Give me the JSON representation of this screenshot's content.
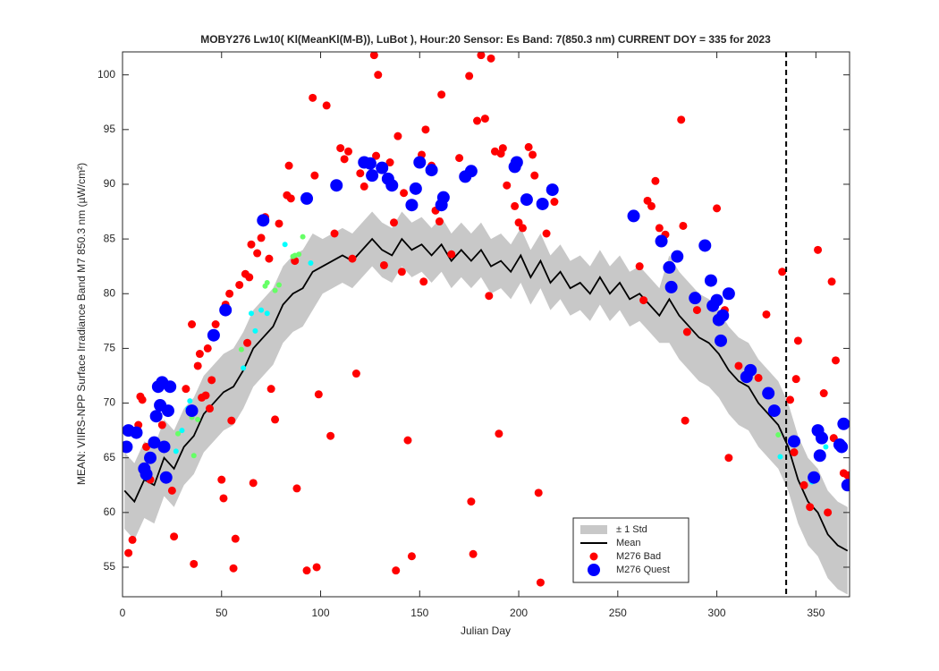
{
  "chart_data": {
    "type": "line",
    "title": "MOBY276   Lw10( Kl(MeanKl(M-B)), LuBot ),    Hour:20 Sensor: Es Band: 7(850.3 nm)    CURRENT DOY = 335 for 2023",
    "xlabel": "Julian Day",
    "ylabel": "MEAN: VIIRS-NPP Surface Irradiance Band M7 850.3 nm (µW/cm²)",
    "xlim": [
      0,
      367
    ],
    "ylim": [
      52.3,
      102.1
    ],
    "xticks": [
      0,
      50,
      100,
      150,
      200,
      250,
      300,
      350
    ],
    "yticks": [
      55,
      60,
      65,
      70,
      75,
      80,
      85,
      90,
      95,
      100
    ],
    "legend": "lower right",
    "vline": 335,
    "x": [
      1,
      6,
      11,
      16,
      21,
      26,
      31,
      36,
      41,
      46,
      51,
      56,
      61,
      66,
      71,
      76,
      81,
      86,
      91,
      96,
      101,
      106,
      111,
      116,
      121,
      126,
      131,
      136,
      141,
      146,
      151,
      156,
      161,
      166,
      171,
      176,
      181,
      186,
      191,
      196,
      201,
      206,
      211,
      216,
      221,
      226,
      231,
      236,
      241,
      246,
      251,
      256,
      261,
      266,
      271,
      276,
      281,
      286,
      291,
      296,
      301,
      306,
      311,
      316,
      321,
      326,
      331,
      336,
      341,
      346,
      351,
      356,
      361,
      366
    ],
    "band": {
      "name": "± 1 Std",
      "color": "#c8c8c8",
      "upper": [
        65.5,
        64.5,
        66.5,
        66,
        68.5,
        67.5,
        69.5,
        70.5,
        72.5,
        73.5,
        74.5,
        75,
        76.5,
        78.5,
        79.5,
        80.5,
        82.5,
        83.5,
        84,
        85.5,
        85,
        85.5,
        86,
        85.5,
        86.5,
        87.5,
        86.5,
        86,
        87.5,
        86.5,
        87,
        86,
        87,
        85.5,
        86.5,
        85.5,
        86.5,
        85,
        85.5,
        84.5,
        86,
        84,
        85.5,
        83.5,
        84.5,
        83,
        83.5,
        82.5,
        84,
        82.5,
        83.5,
        82,
        82.5,
        81.5,
        80.5,
        83.5,
        82,
        81,
        80,
        79.5,
        78.5,
        77,
        76,
        75.5,
        74,
        73,
        72,
        70,
        67,
        65,
        64,
        62,
        61,
        60.5
      ],
      "lower": [
        58.5,
        57.5,
        59.5,
        59,
        61.5,
        60.5,
        62.5,
        63.5,
        65.5,
        66.5,
        67.5,
        68,
        69.5,
        71.5,
        72.5,
        73.5,
        75.5,
        76.5,
        77,
        78.5,
        80,
        80.5,
        81,
        80.5,
        81.5,
        82.5,
        81.5,
        81,
        82.5,
        81.5,
        82,
        81,
        82,
        80.5,
        81.5,
        80.5,
        81.5,
        80,
        80.5,
        79.5,
        81,
        79,
        80.5,
        78.5,
        79.5,
        78,
        78.5,
        77.5,
        79,
        77.5,
        78.5,
        77,
        77.5,
        76.5,
        75.5,
        75.5,
        74,
        73,
        72,
        71.5,
        70.5,
        69,
        68,
        67.5,
        66,
        65,
        64,
        62,
        59,
        57,
        56,
        54,
        53,
        52.5
      ]
    },
    "mean": {
      "name": "Mean",
      "color": "#000000",
      "values": [
        62,
        61,
        63,
        62.5,
        65,
        64,
        66,
        67,
        69,
        70,
        71,
        71.5,
        73,
        75,
        76,
        77,
        79,
        80,
        80.5,
        82,
        82.5,
        83,
        83.5,
        83,
        84,
        85,
        84,
        83.5,
        85,
        84,
        84.5,
        83.5,
        84.5,
        83,
        84,
        83,
        84,
        82.5,
        83,
        82,
        83.5,
        81.5,
        83,
        81,
        82,
        80.5,
        81,
        80,
        81.5,
        80,
        81,
        79.5,
        80,
        79,
        78,
        79.5,
        78,
        77,
        76,
        75.5,
        74.5,
        73,
        72,
        71.5,
        70,
        69,
        68,
        66,
        63,
        61,
        60,
        58,
        57,
        56.5
      ]
    },
    "series": [
      {
        "name": "M276 Bad",
        "color": "#ff0000",
        "size": 4.5,
        "x": [
          3,
          5,
          8,
          9,
          10,
          12,
          14,
          20,
          25,
          26,
          32,
          35,
          36,
          38,
          39,
          40,
          42,
          43,
          44,
          45,
          47,
          50,
          51,
          52,
          54,
          55,
          56,
          57,
          59,
          62,
          63,
          64,
          65,
          66,
          68,
          70,
          72,
          74,
          75,
          77,
          79,
          83,
          84,
          85,
          87,
          88,
          93,
          96,
          97,
          98,
          99,
          103,
          105,
          107,
          110,
          112,
          114,
          116,
          118,
          120,
          122,
          127,
          128,
          129,
          132,
          135,
          137,
          138,
          139,
          141,
          142,
          144,
          146,
          151,
          152,
          153,
          156,
          158,
          160,
          161,
          166,
          170,
          172,
          175,
          176,
          177,
          179,
          181,
          183,
          185,
          186,
          188,
          190,
          191,
          192,
          194,
          198,
          200,
          202,
          205,
          207,
          208,
          210,
          211,
          214,
          218,
          261,
          263,
          265,
          267,
          269,
          271,
          274,
          282,
          283,
          284,
          285,
          290,
          300,
          304,
          306,
          311,
          321,
          325,
          333,
          337,
          339,
          340,
          341,
          344,
          347,
          351,
          354,
          356,
          358,
          359,
          360,
          364,
          366
        ],
        "values": [
          56.3,
          57.5,
          68,
          70.6,
          70.3,
          66,
          63,
          68,
          62,
          57.8,
          71.3,
          77.2,
          55.3,
          73.4,
          74.5,
          70.5,
          70.7,
          75,
          69.5,
          72.1,
          77.2,
          63,
          61.3,
          79,
          80,
          68.4,
          54.9,
          57.6,
          80.8,
          81.8,
          75.5,
          81.5,
          84.5,
          62.7,
          83.7,
          85.1,
          87,
          83.2,
          71.3,
          68.5,
          86.4,
          89,
          91.7,
          88.7,
          83,
          62.2,
          54.7,
          97.9,
          90.8,
          55,
          70.8,
          97.2,
          67,
          85.5,
          93.3,
          92.3,
          93,
          83.2,
          72.7,
          91,
          89.8,
          101.8,
          92.6,
          100,
          82.6,
          92,
          86.5,
          54.7,
          94.4,
          82,
          89.2,
          66.6,
          56,
          92.7,
          81.1,
          95,
          91.7,
          87.6,
          86.6,
          98.2,
          83.6,
          92.4,
          90.8,
          99.9,
          61,
          56.2,
          95.8,
          101.8,
          96,
          79.8,
          101.5,
          93,
          67.2,
          92.8,
          93.3,
          89.9,
          88,
          86.5,
          86,
          93.4,
          92.7,
          90.8,
          61.8,
          53.6,
          85.5,
          88.4,
          82.5,
          79.4,
          88.5,
          88,
          90.3,
          86,
          85.4,
          95.9,
          86.2,
          68.4,
          76.5,
          78.5,
          87.8,
          78.5,
          65,
          73.4,
          72.3,
          78.1,
          82,
          70.3,
          65.5,
          72.2,
          75.7,
          62.5,
          60.5,
          84,
          70.9,
          60,
          81.1,
          66.8,
          73.9,
          63.6,
          63.4
        ]
      },
      {
        "color": "#00ffff",
        "size": 3,
        "x": [
          27,
          30,
          33,
          34,
          61,
          65,
          67,
          70,
          73,
          82,
          95,
          332,
          348,
          355
        ],
        "values": [
          65.6,
          67.5,
          69.5,
          70.2,
          73.2,
          78.2,
          76.6,
          78.5,
          78.2,
          84.5,
          82.8,
          65.1,
          62.8,
          66
        ]
      },
      {
        "color": "#66ff66",
        "size": 3,
        "x": [
          28,
          35,
          36,
          38,
          60,
          72,
          73,
          77,
          79,
          86,
          87,
          89,
          91,
          331
        ],
        "values": [
          67.2,
          68.7,
          65.2,
          68.5,
          74.9,
          80.7,
          81,
          80.3,
          80.8,
          83.4,
          83.5,
          83.6,
          85.2,
          67.1
        ]
      },
      {
        "name": "M276 Quest",
        "color": "#0000ff",
        "size": 7,
        "x": [
          2,
          3,
          7,
          11,
          12,
          14,
          16,
          17,
          18,
          19,
          20,
          21,
          22,
          23,
          24,
          35,
          46,
          52,
          71,
          93,
          108,
          122,
          125,
          126,
          131,
          134,
          136,
          146,
          148,
          150,
          156,
          161,
          162,
          173,
          176,
          198,
          199,
          204,
          212,
          217,
          258,
          272,
          276,
          277,
          280,
          289,
          294,
          297,
          298,
          300,
          301,
          302,
          303,
          306,
          315,
          317,
          326,
          329,
          339,
          349,
          351,
          352,
          353,
          362,
          363,
          364,
          366
        ],
        "values": [
          66,
          67.5,
          67.3,
          64,
          63.5,
          65,
          66.4,
          68.8,
          71.5,
          69.8,
          71.9,
          66,
          63.2,
          69.3,
          71.5,
          69.3,
          76.2,
          78.5,
          86.7,
          88.7,
          89.9,
          92,
          91.9,
          90.8,
          91.5,
          90.5,
          89.9,
          88.1,
          89.6,
          92,
          91.3,
          88.1,
          88.8,
          90.7,
          91.2,
          91.6,
          92,
          88.6,
          88.2,
          89.5,
          87.1,
          84.8,
          82.4,
          80.6,
          83.4,
          79.6,
          84.4,
          81.2,
          78.9,
          79.4,
          77.6,
          75.7,
          78,
          80,
          72.4,
          73,
          70.9,
          69.3,
          66.5,
          63.2,
          67.5,
          65.2,
          66.8,
          66.2,
          66,
          68.1,
          62.5
        ]
      }
    ]
  }
}
